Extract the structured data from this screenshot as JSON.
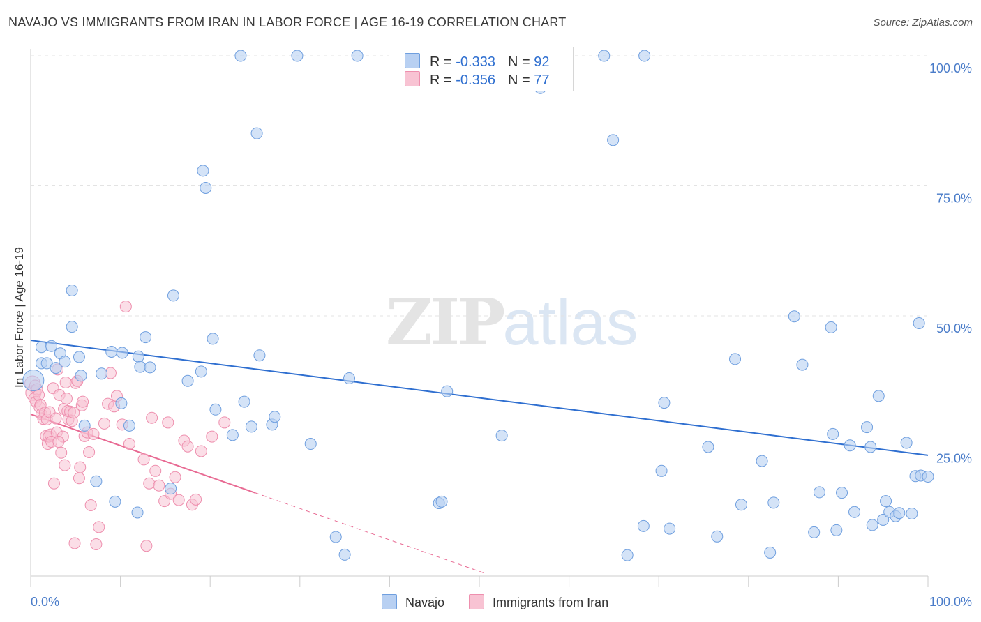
{
  "title": "NAVAJO VS IMMIGRANTS FROM IRAN IN LABOR FORCE | AGE 16-19 CORRELATION CHART",
  "source": "Source: ZipAtlas.com",
  "watermark": {
    "zip": "ZIP",
    "atlas": "atlas"
  },
  "legend": {
    "rows": [
      {
        "r_label": "R = ",
        "r_value": "-0.333",
        "n_label": "N = ",
        "n_value": "92"
      },
      {
        "r_label": "R = ",
        "r_value": "-0.356",
        "n_label": "N = ",
        "n_value": "77"
      }
    ]
  },
  "bottom_legend": {
    "series1": "Navajo",
    "series2": "Immigrants from Iran"
  },
  "colors": {
    "navajo_fill": "#b8d0f2",
    "navajo_stroke": "#6f9fdf",
    "navajo_line": "#2f6fd0",
    "iran_fill": "#f8c3d3",
    "iran_stroke": "#ee8fae",
    "iran_line": "#e86a93",
    "grid": "#e3e3e3",
    "axis_text": "#4a7cc9"
  },
  "chart_data": {
    "type": "scatter",
    "title": "NAVAJO VS IMMIGRANTS FROM IRAN IN LABOR FORCE | AGE 16-19 CORRELATION CHART",
    "xlabel": "",
    "ylabel": "In Labor Force | Age 16-19",
    "xlim": [
      0,
      100
    ],
    "ylim": [
      0,
      100
    ],
    "x_tick_labels": [
      "0.0%",
      "100.0%"
    ],
    "y_tick_labels": [
      "100.0%",
      "75.0%",
      "50.0%",
      "25.0%"
    ],
    "y_ticks": [
      100,
      75,
      50,
      25
    ],
    "grid": true,
    "legend_position": "top-center",
    "series": [
      {
        "name": "Navajo",
        "R": -0.333,
        "N": 92,
        "trend": {
          "x": [
            0,
            100
          ],
          "y": [
            45.3,
            23.2
          ]
        },
        "points": [
          [
            0.3,
            37.6
          ],
          [
            1.2,
            44
          ],
          [
            1.2,
            40.9
          ],
          [
            1.8,
            40.9
          ],
          [
            2.3,
            44.2
          ],
          [
            2.8,
            40
          ],
          [
            3.3,
            42.8
          ],
          [
            3.8,
            41.2
          ],
          [
            4.6,
            47.9
          ],
          [
            4.6,
            54.9
          ],
          [
            5.4,
            42.1
          ],
          [
            5.6,
            38.5
          ],
          [
            6,
            28.9
          ],
          [
            7.3,
            18.2
          ],
          [
            7.9,
            38.9
          ],
          [
            9,
            43.1
          ],
          [
            9.4,
            14.3
          ],
          [
            10.1,
            33.2
          ],
          [
            10.2,
            42.9
          ],
          [
            11,
            28.9
          ],
          [
            11.9,
            12.2
          ],
          [
            12,
            42.2
          ],
          [
            12.2,
            40.2
          ],
          [
            12.8,
            45.9
          ],
          [
            13.3,
            40.1
          ],
          [
            15.6,
            16.8
          ],
          [
            15.9,
            53.9
          ],
          [
            17.5,
            37.5
          ],
          [
            19,
            39.3
          ],
          [
            19.2,
            77.9
          ],
          [
            19.5,
            74.6
          ],
          [
            20.3,
            45.6
          ],
          [
            20.6,
            32
          ],
          [
            22.5,
            27.1
          ],
          [
            23.4,
            100
          ],
          [
            23.8,
            33.5
          ],
          [
            24.6,
            28.7
          ],
          [
            25.2,
            85.1
          ],
          [
            25.5,
            42.4
          ],
          [
            26.9,
            29.1
          ],
          [
            27.2,
            30.6
          ],
          [
            29.7,
            100
          ],
          [
            31.2,
            25.4
          ],
          [
            34,
            7.5
          ],
          [
            35,
            4.1
          ],
          [
            35.5,
            38
          ],
          [
            36.4,
            100
          ],
          [
            45.5,
            14
          ],
          [
            45.8,
            14.3
          ],
          [
            46.4,
            35.5
          ],
          [
            52.5,
            27
          ],
          [
            56.8,
            93.8
          ],
          [
            63.9,
            100
          ],
          [
            64.9,
            83.8
          ],
          [
            66.5,
            4
          ],
          [
            68.4,
            100
          ],
          [
            68.3,
            9.6
          ],
          [
            70.3,
            20.2
          ],
          [
            70.6,
            33.3
          ],
          [
            71.2,
            9.1
          ],
          [
            75.5,
            24.8
          ],
          [
            76.5,
            7.6
          ],
          [
            78.5,
            41.7
          ],
          [
            79.2,
            13.7
          ],
          [
            81.5,
            22.1
          ],
          [
            82.4,
            4.5
          ],
          [
            82.8,
            14.1
          ],
          [
            85.1,
            49.9
          ],
          [
            86,
            40.6
          ],
          [
            87.3,
            8.4
          ],
          [
            87.9,
            16.1
          ],
          [
            89.2,
            47.8
          ],
          [
            89.4,
            27.3
          ],
          [
            89.8,
            8.8
          ],
          [
            90.4,
            16
          ],
          [
            91.3,
            25.1
          ],
          [
            91.8,
            12.3
          ],
          [
            93.2,
            28.6
          ],
          [
            93.6,
            24.8
          ],
          [
            93.8,
            9.8
          ],
          [
            94.5,
            34.6
          ],
          [
            95,
            10.8
          ],
          [
            95.3,
            14.4
          ],
          [
            95.7,
            12.3
          ],
          [
            96.4,
            11.5
          ],
          [
            96.8,
            12.1
          ],
          [
            97.6,
            25.6
          ],
          [
            98.2,
            12
          ],
          [
            98.6,
            19.2
          ],
          [
            99,
            48.6
          ],
          [
            99.2,
            19.3
          ],
          [
            100,
            19.1
          ]
        ]
      },
      {
        "name": "Immigrants from Iran",
        "R": -0.356,
        "N": 77,
        "trend": {
          "x": [
            0,
            25
          ],
          "y": [
            31.1,
            16
          ]
        },
        "trend_dashed": {
          "x": [
            25,
            50.5
          ],
          "y": [
            16,
            0.6
          ]
        },
        "points": [
          [
            0.2,
            37
          ],
          [
            0.3,
            35.2
          ],
          [
            0.4,
            34.1
          ],
          [
            0.5,
            36.6
          ],
          [
            0.6,
            33.5
          ],
          [
            0.7,
            35.9
          ],
          [
            0.9,
            34.8
          ],
          [
            1,
            32.4
          ],
          [
            1.1,
            32.9
          ],
          [
            1.2,
            31.1
          ],
          [
            1.4,
            30.2
          ],
          [
            1.6,
            31.4
          ],
          [
            1.7,
            26.9
          ],
          [
            1.8,
            30.1
          ],
          [
            1.9,
            25.4
          ],
          [
            2,
            26.8
          ],
          [
            2.1,
            31.5
          ],
          [
            2.2,
            27.2
          ],
          [
            2.3,
            25.8
          ],
          [
            2.5,
            36.1
          ],
          [
            2.6,
            17.8
          ],
          [
            2.8,
            30.3
          ],
          [
            2.9,
            27.6
          ],
          [
            3,
            39.7
          ],
          [
            3.2,
            34.8
          ],
          [
            3.4,
            23.7
          ],
          [
            3.6,
            26.8
          ],
          [
            3.7,
            32.1
          ],
          [
            3.8,
            21.3
          ],
          [
            3.9,
            37.2
          ],
          [
            4,
            34.1
          ],
          [
            4.1,
            31.7
          ],
          [
            4.2,
            30.1
          ],
          [
            4.4,
            31.6
          ],
          [
            4.6,
            29.8
          ],
          [
            4.8,
            31.4
          ],
          [
            4.9,
            6.3
          ],
          [
            5,
            37.1
          ],
          [
            5.2,
            37.5
          ],
          [
            5.4,
            18.8
          ],
          [
            5.5,
            20.9
          ],
          [
            5.7,
            32.8
          ],
          [
            5.8,
            33.5
          ],
          [
            6,
            26.9
          ],
          [
            6.3,
            27.6
          ],
          [
            6.5,
            23.8
          ],
          [
            6.7,
            13.6
          ],
          [
            7,
            27.3
          ],
          [
            7.3,
            6.1
          ],
          [
            7.6,
            9.4
          ],
          [
            8.2,
            29.3
          ],
          [
            8.6,
            33.1
          ],
          [
            8.9,
            39
          ],
          [
            9.3,
            32.6
          ],
          [
            9.6,
            34.6
          ],
          [
            10.2,
            29.1
          ],
          [
            10.6,
            51.8
          ],
          [
            11,
            25.4
          ],
          [
            12.6,
            22.4
          ],
          [
            12.9,
            5.8
          ],
          [
            13.2,
            17.8
          ],
          [
            13.5,
            30.4
          ],
          [
            13.9,
            20.2
          ],
          [
            14.3,
            17.4
          ],
          [
            14.9,
            14.4
          ],
          [
            15.3,
            29.5
          ],
          [
            15.6,
            15.8
          ],
          [
            16.1,
            19
          ],
          [
            16.5,
            14.6
          ],
          [
            17.1,
            26
          ],
          [
            17.5,
            24.9
          ],
          [
            18,
            13.7
          ],
          [
            18.4,
            14.7
          ],
          [
            19,
            24
          ],
          [
            20.2,
            26.8
          ],
          [
            21.6,
            29.5
          ],
          [
            3.1,
            25.8
          ]
        ]
      }
    ]
  }
}
